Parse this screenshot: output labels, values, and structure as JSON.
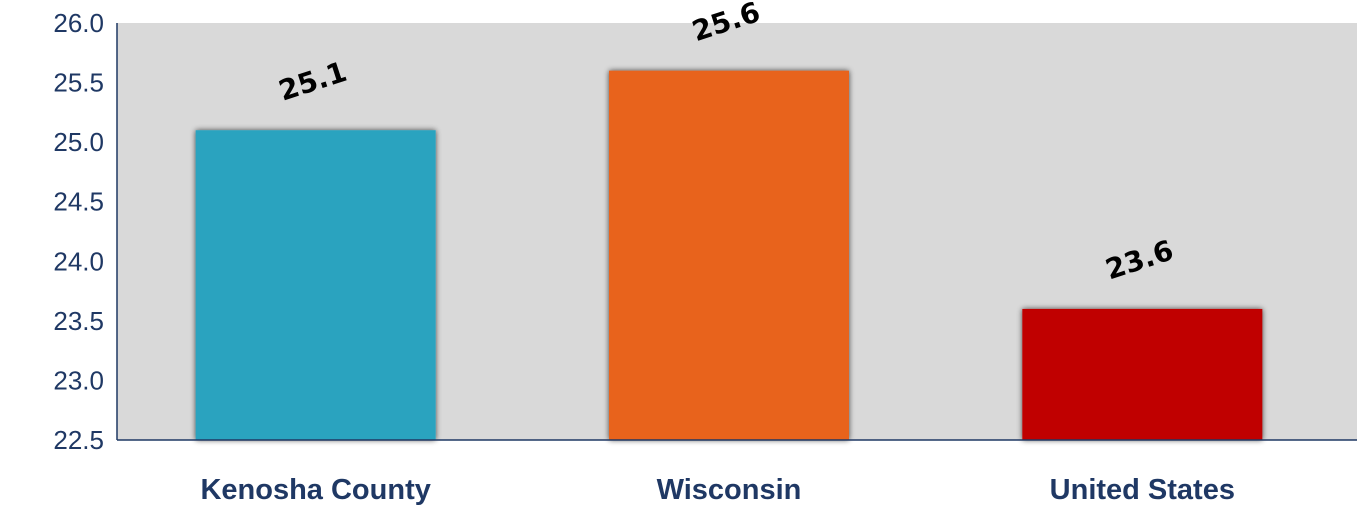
{
  "chart_data": {
    "type": "bar",
    "categories": [
      "Kenosha County",
      "Wisconsin",
      "United States"
    ],
    "values": [
      25.1,
      25.6,
      23.6
    ],
    "value_labels": [
      "25.1",
      "25.6",
      "23.6"
    ],
    "colors": [
      "#2ba3bf",
      "#e8641e",
      "#c00000"
    ],
    "ylim": [
      22.5,
      26.0
    ],
    "yticks": [
      "22.5",
      "23.0",
      "23.5",
      "24.0",
      "24.5",
      "25.0",
      "25.5",
      "26.0"
    ],
    "plot_background": "#d9d9d9",
    "axis_color": "#1f3864",
    "title": "",
    "xlabel": "",
    "ylabel": "",
    "grid": false,
    "legend": "none"
  }
}
